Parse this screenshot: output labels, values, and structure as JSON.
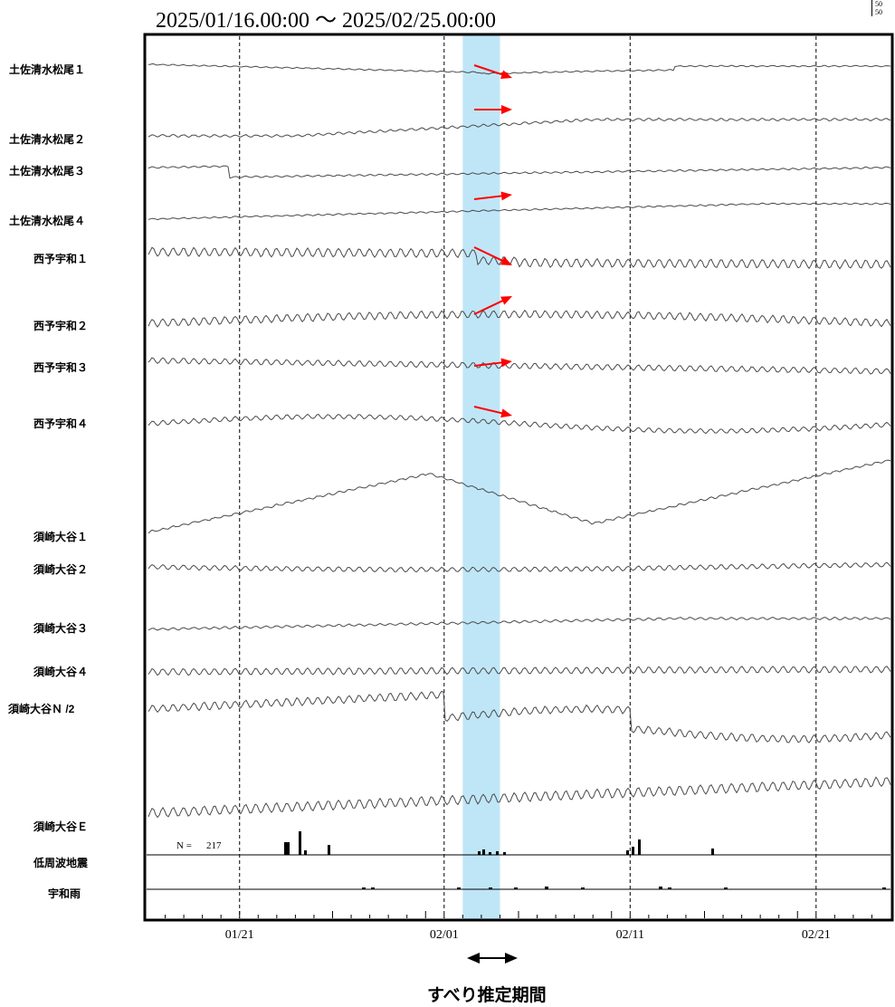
{
  "title": "2025/01/16.00:00 ～ 2025/02/25.00:00",
  "scale_note": [
    "50",
    "50"
  ],
  "period_label": "すべり推定期間",
  "n_label": "N =",
  "n_value": "217",
  "colors": {
    "trace": "#4a4a4a",
    "highlight": "#bfe6f7",
    "arrow": "#ff0000",
    "frame": "#000000"
  },
  "chart_data": {
    "type": "line",
    "title": "2025/01/16.00:00 ～ 2025/02/25.00:00",
    "x_range": [
      "2025-01-16",
      "2025-02-25"
    ],
    "x_tick_labels": [
      "01/21",
      "02/01",
      "02/11",
      "02/21"
    ],
    "vertical_grid_dates": [
      "2025-01-21",
      "2025-02-01",
      "2025-02-11",
      "2025-02-21"
    ],
    "highlighted_period": [
      "2025-02-02",
      "2025-02-04"
    ],
    "stations": [
      "土佐清水松尾１",
      "土佐清水松尾２",
      "土佐清水松尾３",
      "土佐清水松尾４",
      "西予宇和１",
      "西予宇和２",
      "西予宇和３",
      "西予宇和４",
      "須崎大谷１",
      "須崎大谷２",
      "須崎大谷３",
      "須崎大谷４",
      "須崎大谷Ｎ /2",
      "須崎大谷Ｅ",
      "低周波地震",
      "宇和雨"
    ],
    "arrow_count": 7,
    "grid": true
  }
}
